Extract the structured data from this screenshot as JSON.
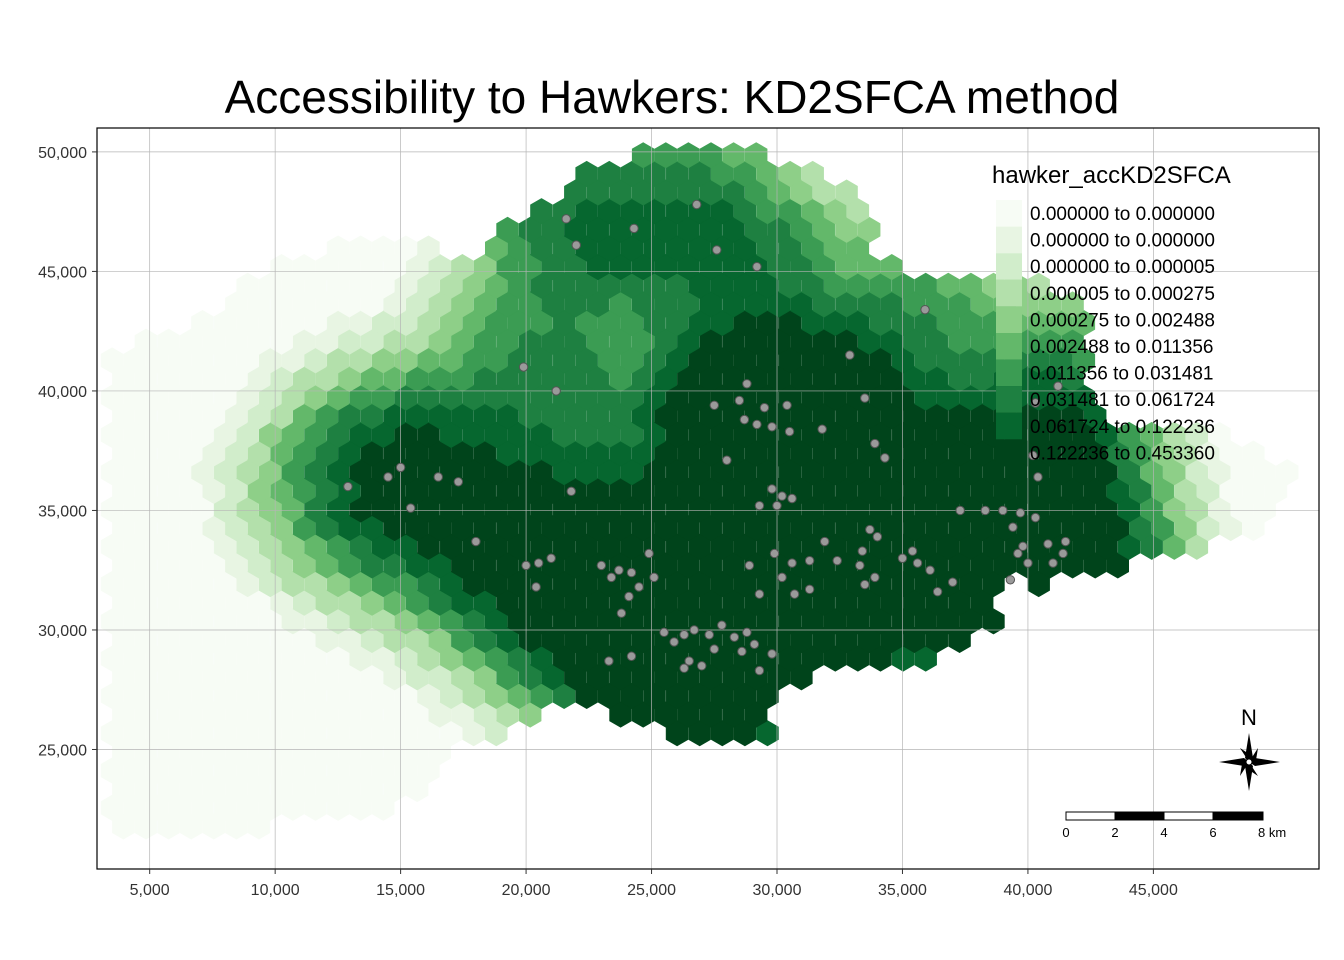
{
  "title": "Accessibility to Hawkers: KD2SFCA method",
  "map": {
    "x_range": [
      2900,
      51600
    ],
    "y_range": [
      20000,
      51000
    ],
    "x_ticks": [
      {
        "value": 5000,
        "label": "5,000"
      },
      {
        "value": 10000,
        "label": "10,000"
      },
      {
        "value": 15000,
        "label": "15,000"
      },
      {
        "value": 20000,
        "label": "20,000"
      },
      {
        "value": 25000,
        "label": "25,000"
      },
      {
        "value": 30000,
        "label": "30,000"
      },
      {
        "value": 35000,
        "label": "35,000"
      },
      {
        "value": 40000,
        "label": "40,000"
      },
      {
        "value": 45000,
        "label": "45,000"
      }
    ],
    "y_ticks": [
      {
        "value": 25000,
        "label": "25,000"
      },
      {
        "value": 30000,
        "label": "30,000"
      },
      {
        "value": 35000,
        "label": "35,000"
      },
      {
        "value": 40000,
        "label": "40,000"
      },
      {
        "value": 45000,
        "label": "45,000"
      },
      {
        "value": 50000,
        "label": "50,000"
      }
    ],
    "grid": true
  },
  "legend": {
    "title": "hawker_accKD2SFCA",
    "placement": "top-right",
    "classes": [
      {
        "label": "0.000000 to 0.000000",
        "color": "#f7fcf5"
      },
      {
        "label": "0.000000 to 0.000000",
        "color": "#e8f5e3"
      },
      {
        "label": "0.000000 to 0.000005",
        "color": "#d1edcb"
      },
      {
        "label": "0.000005 to 0.000275",
        "color": "#b3e0ab"
      },
      {
        "label": "0.000275 to 0.002488",
        "color": "#8ecf88"
      },
      {
        "label": "0.002488 to 0.011356",
        "color": "#63b86a"
      },
      {
        "label": "0.011356 to 0.031481",
        "color": "#3b9c53"
      },
      {
        "label": "0.031481 to 0.061724",
        "color": "#1e8041"
      },
      {
        "label": "0.061724 to 0.122236",
        "color": "#06672f"
      },
      {
        "label": "0.122236 to 0.453360",
        "color": "#00441b"
      }
    ]
  },
  "scale_bar": {
    "labels": [
      "0",
      "2",
      "4",
      "6",
      "8 km"
    ]
  },
  "north_arrow": {
    "label": "N"
  },
  "hawker_color": "#9a9a9a",
  "hawkers": [
    [
      21600,
      47200
    ],
    [
      22000,
      46100
    ],
    [
      24300,
      46800
    ],
    [
      26800,
      47800
    ],
    [
      27600,
      45900
    ],
    [
      29200,
      45200
    ],
    [
      35900,
      43400
    ],
    [
      32900,
      41500
    ],
    [
      33500,
      39700
    ],
    [
      19900,
      41000
    ],
    [
      21200,
      40000
    ],
    [
      28800,
      40300
    ],
    [
      28500,
      39600
    ],
    [
      29500,
      39300
    ],
    [
      27500,
      39400
    ],
    [
      30400,
      39400
    ],
    [
      28700,
      38800
    ],
    [
      29200,
      38600
    ],
    [
      29800,
      38500
    ],
    [
      30500,
      38300
    ],
    [
      31800,
      38400
    ],
    [
      33900,
      37800
    ],
    [
      34300,
      37200
    ],
    [
      28000,
      37100
    ],
    [
      15000,
      36800
    ],
    [
      14500,
      36400
    ],
    [
      16500,
      36400
    ],
    [
      17300,
      36200
    ],
    [
      12900,
      36000
    ],
    [
      15400,
      35100
    ],
    [
      21800,
      35800
    ],
    [
      29800,
      35900
    ],
    [
      30200,
      35600
    ],
    [
      30000,
      35200
    ],
    [
      30600,
      35500
    ],
    [
      29300,
      35200
    ],
    [
      18000,
      33700
    ],
    [
      20000,
      32700
    ],
    [
      20500,
      32800
    ],
    [
      21000,
      33000
    ],
    [
      20400,
      31800
    ],
    [
      23000,
      32700
    ],
    [
      23700,
      32500
    ],
    [
      23400,
      32200
    ],
    [
      24200,
      32400
    ],
    [
      24500,
      31800
    ],
    [
      25100,
      32200
    ],
    [
      24900,
      33200
    ],
    [
      24100,
      31400
    ],
    [
      23800,
      30700
    ],
    [
      28900,
      32700
    ],
    [
      29900,
      33200
    ],
    [
      30600,
      32800
    ],
    [
      31300,
      32900
    ],
    [
      31900,
      33700
    ],
    [
      32400,
      32900
    ],
    [
      30200,
      32200
    ],
    [
      30700,
      31500
    ],
    [
      29300,
      31500
    ],
    [
      31300,
      31700
    ],
    [
      33700,
      34200
    ],
    [
      34000,
      33900
    ],
    [
      33400,
      33300
    ],
    [
      33300,
      32700
    ],
    [
      33900,
      32200
    ],
    [
      35000,
      33000
    ],
    [
      35600,
      32800
    ],
    [
      35400,
      33300
    ],
    [
      36100,
      32500
    ],
    [
      37000,
      32000
    ],
    [
      36400,
      31600
    ],
    [
      33500,
      31900
    ],
    [
      37300,
      35000
    ],
    [
      38300,
      35000
    ],
    [
      39000,
      35000
    ],
    [
      39700,
      34900
    ],
    [
      40300,
      34700
    ],
    [
      39400,
      34300
    ],
    [
      39800,
      33500
    ],
    [
      39600,
      33200
    ],
    [
      40000,
      32800
    ],
    [
      40800,
      33600
    ],
    [
      41000,
      32800
    ],
    [
      41400,
      33200
    ],
    [
      40200,
      37300
    ],
    [
      40400,
      36400
    ],
    [
      41500,
      33700
    ],
    [
      39300,
      32100
    ],
    [
      40300,
      39500
    ],
    [
      41200,
      40200
    ],
    [
      26300,
      29800
    ],
    [
      26700,
      30000
    ],
    [
      27300,
      29800
    ],
    [
      27800,
      30200
    ],
    [
      28300,
      29700
    ],
    [
      28800,
      29900
    ],
    [
      29100,
      29400
    ],
    [
      29800,
      29000
    ],
    [
      27500,
      29200
    ],
    [
      26500,
      28700
    ],
    [
      27000,
      28500
    ],
    [
      28600,
      29100
    ],
    [
      29300,
      28300
    ],
    [
      25500,
      29900
    ],
    [
      25900,
      29500
    ],
    [
      24200,
      28900
    ],
    [
      23300,
      28700
    ],
    [
      26300,
      28400
    ]
  ]
}
